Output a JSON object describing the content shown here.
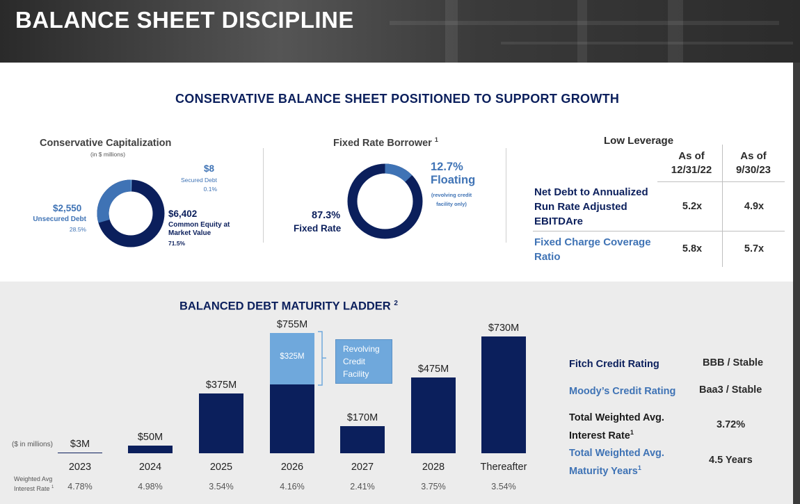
{
  "page": {
    "title": "BALANCE SHEET DISCIPLINE",
    "section_top_title": "CONSERVATIVE BALANCE SHEET POSITIONED TO SUPPORT GROWTH",
    "colors": {
      "navy": "#0b1f5c",
      "light_blue": "#6fa8dc",
      "mid_blue": "#3f73b5"
    }
  },
  "capitalization": {
    "title": "Conservative Capitalization",
    "subtitle": "(in $ millions)",
    "secured": {
      "value": "$8",
      "label": "Secured Debt",
      "pct": "0.1%"
    },
    "unsecured": {
      "value": "$2,550",
      "label": "Unsecured Debt",
      "pct": "28.5%"
    },
    "equity": {
      "value": "$6,402",
      "label_line1": "Common Equity at",
      "label_line2": "Market Value",
      "pct": "71.5%"
    }
  },
  "fixed_rate": {
    "title": "Fixed Rate Borrower",
    "footnote": "1",
    "floating": {
      "pct": "12.7%",
      "label": "Floating",
      "note_line1": "(revolving credit",
      "note_line2": "facility only)"
    },
    "fixed": {
      "pct": "87.3%",
      "label": "Fixed Rate"
    }
  },
  "leverage": {
    "title": "Low Leverage",
    "col1_line1": "As of",
    "col1_line2": "12/31/22",
    "col2_line1": "As of",
    "col2_line2": "9/30/23",
    "row1_line1": "Net Debt to Annualized",
    "row1_line2": "Run Rate Adjusted",
    "row1_line3": "EBITDAre",
    "row1_v1": "5.2x",
    "row1_v2": "4.9x",
    "row2_line1": "Fixed Charge Coverage",
    "row2_line2": "Ratio",
    "row2_v1": "5.8x",
    "row2_v2": "5.7x"
  },
  "ladder": {
    "title": "BALANCED DEBT MATURITY LADDER",
    "footnote": "2",
    "units": "($ in millions)",
    "rate_label_line1": "Weighted Avg",
    "rate_label_line2": "Interest Rate",
    "rate_footnote": "1",
    "revolver_line1": "Revolving",
    "revolver_line2": "Credit",
    "revolver_line3": "Facility"
  },
  "chart_data": {
    "type": "bar",
    "title": "BALANCED DEBT MATURITY LADDER",
    "categories": [
      "2023",
      "2024",
      "2025",
      "2026",
      "2027",
      "2028",
      "Thereafter"
    ],
    "total_labels": [
      "$3M",
      "$50M",
      "$375M",
      "$755M",
      "$170M",
      "$475M",
      "$730M"
    ],
    "series": [
      {
        "name": "",
        "values": [
          3,
          50,
          375,
          430,
          170,
          475,
          730
        ],
        "color": "#0b1f5c"
      },
      {
        "name": "Revolving Credit Facility",
        "values": [
          0,
          0,
          0,
          325,
          0,
          0,
          0
        ],
        "color": "#6fa8dc"
      }
    ],
    "segment_labels": {
      "2026": "$325M"
    },
    "weighted_avg_interest_rate": [
      "4.78%",
      "4.98%",
      "3.54%",
      "4.16%",
      "2.41%",
      "3.75%",
      "3.54%"
    ],
    "ylim": [
      0,
      800
    ]
  },
  "ratings": {
    "fitch_label": "Fitch Credit Rating",
    "fitch_value": "BBB / Stable",
    "moodys_label": "Moody’s Credit Rating",
    "moodys_value": "Baa3 / Stable",
    "rate_line1": "Total Weighted Avg.",
    "rate_line2": "Interest Rate",
    "rate_fn": "1",
    "rate_value": "3.72%",
    "maturity_line1": "Total Weighted Avg.",
    "maturity_line2": "Maturity Years",
    "maturity_fn": "1",
    "maturity_value": "4.5 Years"
  }
}
